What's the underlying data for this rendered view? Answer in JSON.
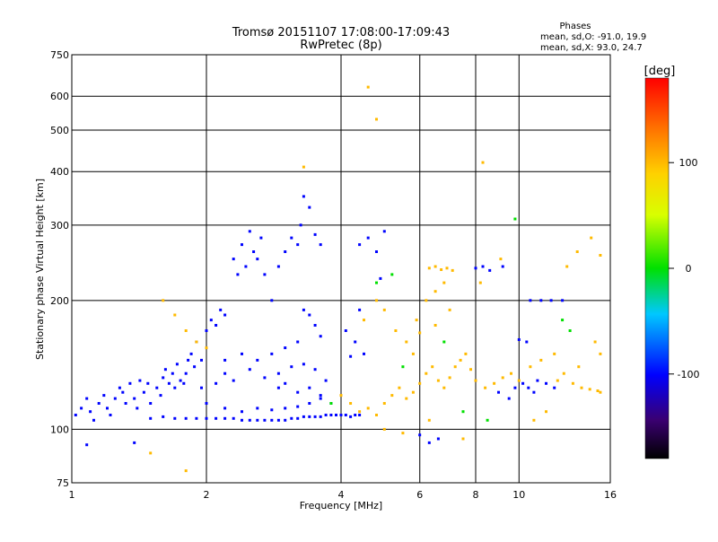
{
  "chart_data": {
    "type": "scatter",
    "title": "Tromsø 20151107 17:08:00-17:09:43",
    "subtitle": "RwPretec (8p)",
    "xlabel": "Frequency [MHz]",
    "ylabel": "Stationary phase Virtual Height [km]",
    "x_scale": "log",
    "y_scale": "log",
    "xlim": [
      1,
      16
    ],
    "ylim": [
      75,
      750
    ],
    "x_ticks": [
      1,
      2,
      4,
      6,
      8,
      10,
      16
    ],
    "x_tick_labels": [
      "1",
      "2",
      "4",
      "6",
      "8",
      "10",
      "16"
    ],
    "y_ticks": [
      75,
      100,
      200,
      300,
      400,
      500,
      600,
      750
    ],
    "y_tick_labels": [
      "75",
      "100",
      "200",
      "300",
      "400",
      "500",
      "600",
      "750"
    ],
    "grid": true,
    "phases_info": {
      "heading": "Phases",
      "line1": "mean, sd,O: -91.0, 19.9",
      "line2": "mean, sd,X:  93.0, 24.7"
    },
    "colorbar": {
      "label": "[deg]",
      "range": [
        -180,
        180
      ],
      "ticks": [
        100,
        0,
        -100
      ],
      "tick_labels": [
        "100",
        "0",
        "-100"
      ]
    },
    "series": [
      {
        "component": "O",
        "color_phase_deg": -100,
        "points": [
          [
            1.02,
            108
          ],
          [
            1.05,
            112
          ],
          [
            1.08,
            118
          ],
          [
            1.1,
            110
          ],
          [
            1.12,
            105
          ],
          [
            1.15,
            115
          ],
          [
            1.18,
            120
          ],
          [
            1.2,
            112
          ],
          [
            1.22,
            108
          ],
          [
            1.25,
            118
          ],
          [
            1.28,
            125
          ],
          [
            1.3,
            122
          ],
          [
            1.32,
            115
          ],
          [
            1.35,
            128
          ],
          [
            1.38,
            118
          ],
          [
            1.4,
            112
          ],
          [
            1.42,
            130
          ],
          [
            1.45,
            122
          ],
          [
            1.48,
            128
          ],
          [
            1.5,
            115
          ],
          [
            1.55,
            125
          ],
          [
            1.58,
            120
          ],
          [
            1.6,
            132
          ],
          [
            1.62,
            138
          ],
          [
            1.65,
            128
          ],
          [
            1.68,
            135
          ],
          [
            1.7,
            125
          ],
          [
            1.72,
            142
          ],
          [
            1.75,
            130
          ],
          [
            1.78,
            128
          ],
          [
            1.8,
            135
          ],
          [
            1.82,
            145
          ],
          [
            1.85,
            150
          ],
          [
            1.88,
            140
          ],
          [
            1.9,
            160
          ],
          [
            1.95,
            145
          ],
          [
            2.0,
            170
          ],
          [
            2.05,
            180
          ],
          [
            2.1,
            175
          ],
          [
            2.15,
            190
          ],
          [
            2.2,
            185
          ],
          [
            2.3,
            250
          ],
          [
            2.35,
            230
          ],
          [
            2.4,
            270
          ],
          [
            2.45,
            240
          ],
          [
            2.5,
            290
          ],
          [
            2.55,
            260
          ],
          [
            2.6,
            250
          ],
          [
            2.65,
            280
          ],
          [
            2.7,
            230
          ],
          [
            2.8,
            200
          ],
          [
            2.9,
            240
          ],
          [
            3.0,
            260
          ],
          [
            3.1,
            280
          ],
          [
            3.2,
            270
          ],
          [
            3.25,
            300
          ],
          [
            3.3,
            350
          ],
          [
            3.4,
            330
          ],
          [
            3.5,
            285
          ],
          [
            3.6,
            270
          ],
          [
            3.3,
            190
          ],
          [
            3.4,
            185
          ],
          [
            3.5,
            175
          ],
          [
            3.6,
            165
          ],
          [
            3.2,
            160
          ],
          [
            3.0,
            155
          ],
          [
            2.8,
            150
          ],
          [
            2.6,
            145
          ],
          [
            2.4,
            150
          ],
          [
            2.2,
            145
          ],
          [
            2.5,
            138
          ],
          [
            2.7,
            132
          ],
          [
            2.9,
            135
          ],
          [
            3.1,
            140
          ],
          [
            3.3,
            142
          ],
          [
            3.5,
            138
          ],
          [
            3.7,
            130
          ],
          [
            2.3,
            130
          ],
          [
            2.1,
            128
          ],
          [
            1.95,
            125
          ],
          [
            1.5,
            106
          ],
          [
            1.6,
            107
          ],
          [
            1.7,
            106
          ],
          [
            1.8,
            106
          ],
          [
            1.9,
            106
          ],
          [
            2.0,
            106
          ],
          [
            2.1,
            106
          ],
          [
            2.2,
            106
          ],
          [
            2.3,
            106
          ],
          [
            2.4,
            105
          ],
          [
            2.5,
            105
          ],
          [
            2.6,
            105
          ],
          [
            2.7,
            105
          ],
          [
            2.8,
            105
          ],
          [
            2.9,
            105
          ],
          [
            3.0,
            105
          ],
          [
            3.1,
            106
          ],
          [
            3.2,
            106
          ],
          [
            3.3,
            107
          ],
          [
            3.4,
            107
          ],
          [
            3.5,
            107
          ],
          [
            3.6,
            107
          ],
          [
            3.7,
            108
          ],
          [
            3.8,
            108
          ],
          [
            3.9,
            108
          ],
          [
            4.0,
            108
          ],
          [
            4.1,
            108
          ],
          [
            4.2,
            107
          ],
          [
            4.3,
            108
          ],
          [
            4.4,
            108
          ],
          [
            2.0,
            115
          ],
          [
            2.2,
            112
          ],
          [
            2.4,
            110
          ],
          [
            2.6,
            112
          ],
          [
            2.8,
            111
          ],
          [
            3.0,
            112
          ],
          [
            3.2,
            113
          ],
          [
            3.4,
            115
          ],
          [
            3.6,
            118
          ],
          [
            3.8,
            115
          ],
          [
            4.2,
            148
          ],
          [
            4.5,
            150
          ],
          [
            4.3,
            160
          ],
          [
            4.1,
            170
          ],
          [
            4.4,
            190
          ],
          [
            4.6,
            280
          ],
          [
            5.0,
            290
          ],
          [
            4.8,
            260
          ],
          [
            4.4,
            270
          ],
          [
            4.9,
            225
          ],
          [
            9.0,
            122
          ],
          [
            9.5,
            118
          ],
          [
            9.8,
            125
          ],
          [
            10.2,
            128
          ],
          [
            10.5,
            125
          ],
          [
            10.8,
            122
          ],
          [
            11.0,
            130
          ],
          [
            11.5,
            128
          ],
          [
            12.0,
            125
          ],
          [
            11.2,
            200
          ],
          [
            10.6,
            200
          ],
          [
            11.8,
            200
          ],
          [
            12.5,
            200
          ],
          [
            10.0,
            162
          ],
          [
            10.4,
            160
          ],
          [
            9.2,
            240
          ],
          [
            8.3,
            240
          ],
          [
            8.0,
            238
          ],
          [
            8.6,
            235
          ],
          [
            1.08,
            92
          ],
          [
            1.38,
            93
          ],
          [
            6.3,
            93
          ],
          [
            6.6,
            95
          ],
          [
            6.0,
            97
          ],
          [
            2.9,
            125
          ],
          [
            3.0,
            128
          ],
          [
            3.2,
            122
          ],
          [
            3.4,
            125
          ],
          [
            3.6,
            120
          ],
          [
            2.2,
            135
          ]
        ]
      },
      {
        "component": "X",
        "color_phase_deg": 100,
        "points": [
          [
            1.6,
            200
          ],
          [
            1.7,
            185
          ],
          [
            1.8,
            170
          ],
          [
            1.9,
            160
          ],
          [
            2.0,
            155
          ],
          [
            4.0,
            120
          ],
          [
            4.2,
            115
          ],
          [
            4.4,
            110
          ],
          [
            4.6,
            112
          ],
          [
            4.8,
            108
          ],
          [
            5.0,
            115
          ],
          [
            5.2,
            120
          ],
          [
            5.4,
            125
          ],
          [
            5.6,
            118
          ],
          [
            5.8,
            122
          ],
          [
            6.0,
            128
          ],
          [
            6.2,
            135
          ],
          [
            6.4,
            140
          ],
          [
            6.6,
            130
          ],
          [
            6.8,
            125
          ],
          [
            7.0,
            132
          ],
          [
            7.2,
            140
          ],
          [
            7.4,
            145
          ],
          [
            7.6,
            150
          ],
          [
            7.8,
            138
          ],
          [
            8.0,
            130
          ],
          [
            8.4,
            125
          ],
          [
            8.8,
            128
          ],
          [
            9.2,
            132
          ],
          [
            9.6,
            135
          ],
          [
            10.0,
            130
          ],
          [
            10.6,
            140
          ],
          [
            11.2,
            145
          ],
          [
            12.0,
            150
          ],
          [
            12.6,
            135
          ],
          [
            13.2,
            128
          ],
          [
            13.8,
            125
          ],
          [
            14.4,
            124
          ],
          [
            15.0,
            123
          ],
          [
            15.2,
            122
          ],
          [
            4.5,
            180
          ],
          [
            4.8,
            200
          ],
          [
            5.0,
            190
          ],
          [
            5.3,
            170
          ],
          [
            5.6,
            160
          ],
          [
            5.9,
            180
          ],
          [
            6.2,
            200
          ],
          [
            6.5,
            210
          ],
          [
            6.8,
            220
          ],
          [
            7.0,
            190
          ],
          [
            6.3,
            238
          ],
          [
            6.5,
            240
          ],
          [
            6.7,
            236
          ],
          [
            6.9,
            238
          ],
          [
            7.1,
            235
          ],
          [
            4.6,
            630
          ],
          [
            4.8,
            530
          ],
          [
            8.3,
            420
          ],
          [
            3.3,
            410
          ],
          [
            15.2,
            255
          ],
          [
            14.5,
            280
          ],
          [
            13.5,
            260
          ],
          [
            12.8,
            240
          ],
          [
            14.8,
            160
          ],
          [
            15.2,
            150
          ],
          [
            13.6,
            140
          ],
          [
            12.2,
            130
          ],
          [
            11.5,
            110
          ],
          [
            10.8,
            105
          ],
          [
            6.3,
            105
          ],
          [
            1.8,
            80
          ],
          [
            1.5,
            88
          ],
          [
            5.0,
            100
          ],
          [
            5.5,
            98
          ],
          [
            7.5,
            95
          ],
          [
            9.1,
            250
          ],
          [
            8.2,
            220
          ],
          [
            5.8,
            150
          ],
          [
            6.0,
            168
          ],
          [
            6.5,
            175
          ]
        ]
      },
      {
        "component": "mixed",
        "color_phase_deg": 0,
        "points": [
          [
            9.8,
            310
          ],
          [
            4.8,
            220
          ],
          [
            5.2,
            230
          ],
          [
            12.5,
            180
          ],
          [
            13.0,
            170
          ],
          [
            7.5,
            110
          ],
          [
            8.5,
            105
          ],
          [
            3.8,
            115
          ],
          [
            5.5,
            140
          ],
          [
            6.8,
            160
          ]
        ]
      }
    ]
  }
}
